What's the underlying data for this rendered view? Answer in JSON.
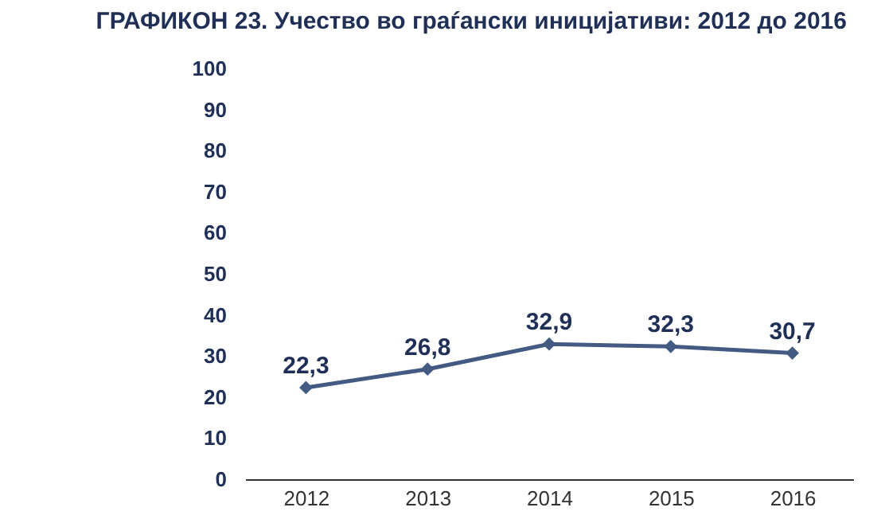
{
  "chart_data": {
    "type": "line",
    "title": "ГРАФИКОН 23. Учество во граѓански иницијативи: 2012 до 2016",
    "categories": [
      "2012",
      "2013",
      "2014",
      "2015",
      "2016"
    ],
    "series": [
      {
        "color": "#435a82",
        "values": [
          22.3,
          26.8,
          32.9,
          32.3,
          30.7
        ],
        "value_labels": [
          "22,3",
          "26,8",
          "32,9",
          "32,3",
          "30,7"
        ]
      }
    ],
    "ylim": [
      0,
      100
    ],
    "yticks": [
      0,
      10,
      20,
      30,
      40,
      50,
      60,
      70,
      80,
      90,
      100
    ],
    "grid": false,
    "marker": "diamond",
    "line_style": "solid"
  }
}
